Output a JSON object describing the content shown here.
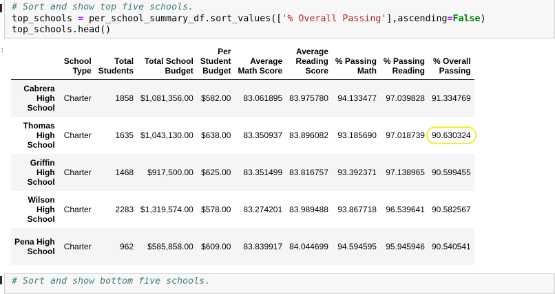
{
  "top_cell": {
    "comment": "# Sort and show top five schools.",
    "line2_var": "top_schools",
    "line2_op": "=",
    "line2_call": "per_school_summary_df.sort_values([",
    "line2_str": "'% Overall Passing'",
    "line2_mid": "],ascending",
    "line2_eq": "=",
    "line2_kw": "False",
    "line2_end": ")",
    "line3": "top_schools.head()"
  },
  "table": {
    "columns": [
      {
        "key": "type",
        "label": "School Type",
        "lines": [
          "School",
          "Type"
        ]
      },
      {
        "key": "students",
        "label": "Total Students",
        "lines": [
          "Total",
          "Students"
        ]
      },
      {
        "key": "budget",
        "label": "Total School Budget",
        "lines": [
          "Total School",
          "Budget"
        ]
      },
      {
        "key": "per_student",
        "label": "Per Student Budget",
        "lines": [
          "Per",
          "Student",
          "Budget"
        ]
      },
      {
        "key": "math",
        "label": "Average Math Score",
        "lines": [
          "Average",
          "Math Score"
        ]
      },
      {
        "key": "reading",
        "label": "Average Reading Score",
        "lines": [
          "Average",
          "Reading",
          "Score"
        ]
      },
      {
        "key": "pass_math",
        "label": "% Passing Math",
        "lines": [
          "% Passing",
          "Math"
        ]
      },
      {
        "key": "pass_reading",
        "label": "% Passing Reading",
        "lines": [
          "% Passing",
          "Reading"
        ]
      },
      {
        "key": "overall",
        "label": "% Overall Passing",
        "lines": [
          "% Overall",
          "Passing"
        ]
      }
    ],
    "rows": [
      {
        "school_lines": [
          "Cabrera",
          "High",
          "School"
        ],
        "type": "Charter",
        "students": "1858",
        "budget": "$1,081,356.00",
        "per_student": "$582.00",
        "math": "83.061895",
        "reading": "83.975780",
        "pass_math": "94.133477",
        "pass_reading": "97.039828",
        "overall": "91.334769"
      },
      {
        "school_lines": [
          "Thomas",
          "High",
          "School"
        ],
        "type": "Charter",
        "students": "1635",
        "budget": "$1,043,130.00",
        "per_student": "$638.00",
        "math": "83.350937",
        "reading": "83.896082",
        "pass_math": "93.185690",
        "pass_reading": "97.018739",
        "overall": "90.630324"
      },
      {
        "school_lines": [
          "Griffin",
          "High",
          "School"
        ],
        "type": "Charter",
        "students": "1468",
        "budget": "$917,500.00",
        "per_student": "$625.00",
        "math": "83.351499",
        "reading": "83.816757",
        "pass_math": "93.392371",
        "pass_reading": "97.138965",
        "overall": "90.599455"
      },
      {
        "school_lines": [
          "Wilson",
          "High",
          "School"
        ],
        "type": "Charter",
        "students": "2283",
        "budget": "$1,319,574.00",
        "per_student": "$578.00",
        "math": "83.274201",
        "reading": "83.989488",
        "pass_math": "93.867718",
        "pass_reading": "96.539641",
        "overall": "90.582567"
      },
      {
        "school_lines": [
          "Pena High",
          "School"
        ],
        "type": "Charter",
        "students": "962",
        "budget": "$585,858.00",
        "per_student": "$609.00",
        "math": "83.839917",
        "reading": "84.044699",
        "pass_math": "94.594595",
        "pass_reading": "95.945946",
        "overall": "90.540541"
      }
    ]
  },
  "bottom_cell": {
    "comment": "# Sort and show bottom five schools."
  },
  "colors": {
    "highlight": "#f2ee2c",
    "comment": "#408080",
    "string": "#ba2121",
    "keyword": "#008000"
  }
}
